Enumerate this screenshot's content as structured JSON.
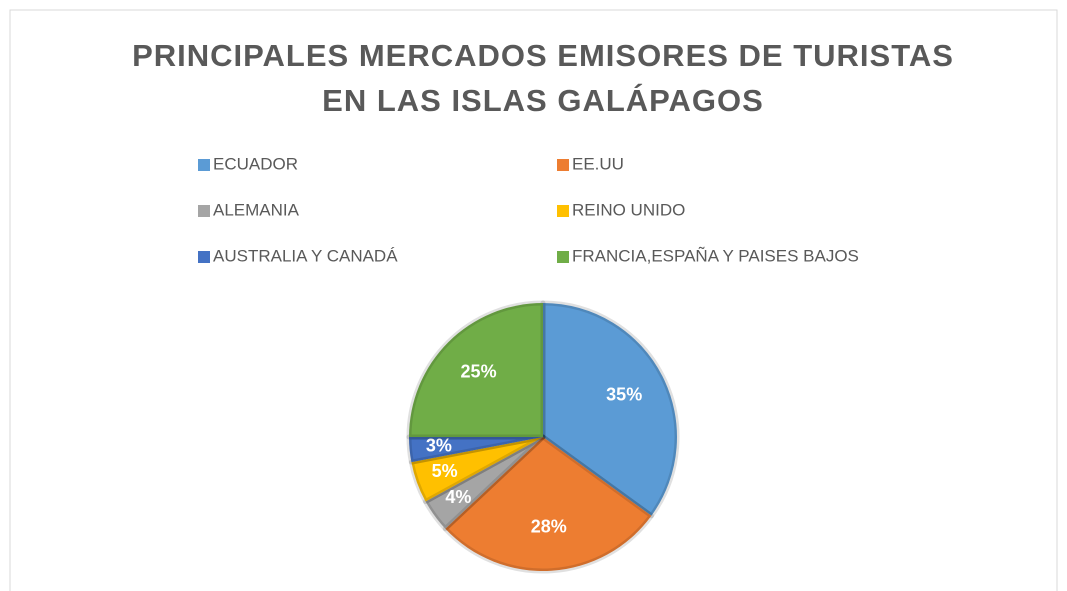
{
  "chart_data": {
    "type": "pie",
    "title": [
      "PRINCIPALES MERCADOS EMISORES DE TURISTAS",
      "EN LAS ISLAS GALÁPAGOS"
    ],
    "categories": [
      "ECUADOR",
      "EE.UU",
      "ALEMANIA",
      "REINO UNIDO",
      "AUSTRALIA Y CANADÁ",
      "FRANCIA,ESPAÑA Y PAISES BAJOS"
    ],
    "values": [
      35,
      28,
      4,
      5,
      3,
      25
    ],
    "value_labels": [
      "35%",
      "28%",
      "4%",
      "5%",
      "3%",
      "25%"
    ],
    "colors": [
      "#5b9bd5",
      "#ed7d31",
      "#a5a5a5",
      "#ffc000",
      "#4472c4",
      "#70ad47"
    ],
    "legend": "top"
  }
}
